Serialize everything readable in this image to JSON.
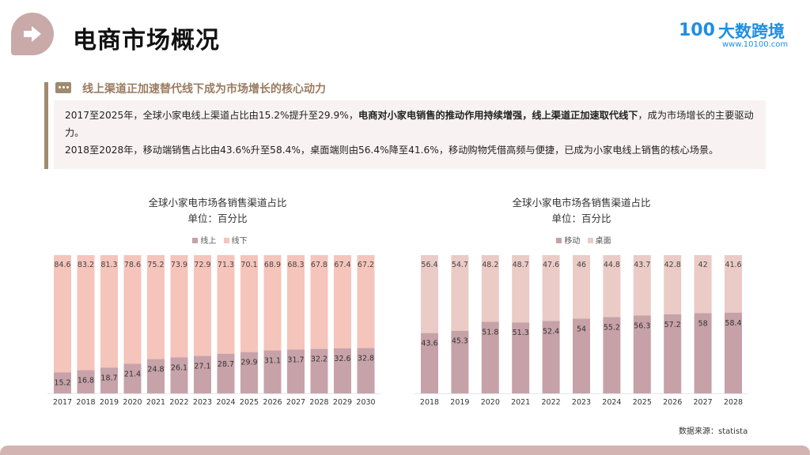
{
  "header": {
    "title": "电商市场概况",
    "icon": "arrow-right-icon"
  },
  "logo": {
    "mark": "100",
    "name": "大数跨境",
    "url": "www.10100.com"
  },
  "section": {
    "title": "线上渠道正加速替代线下成为市场增长的核心动力",
    "icon": "speech-bubble-icon"
  },
  "summary": {
    "p1_a": "2017至2025年，全球小家电线上渠道占比由15.2%提升至29.9%，",
    "p1_bold": "电商对小家电销售的推动作用持续增强，线上渠道正加速取代线下",
    "p1_b": "，成为市场增长的主要驱动力。",
    "p2": "2018至2028年，移动端销售占比由43.6%升至58.4%，桌面端则由56.4%降至41.6%，移动购物凭借高频与便捷，已成为小家电线上销售的核心场景。"
  },
  "source": "数据来源：statista",
  "chart_data": [
    {
      "type": "bar",
      "stacked": true,
      "title": "全球小家电市场各销售渠道占比",
      "subtitle": "单位：百分比",
      "legend_position": "top",
      "grid": false,
      "ylim": [
        0,
        100
      ],
      "categories": [
        "2017",
        "2018",
        "2019",
        "2020",
        "2021",
        "2022",
        "2023",
        "2024",
        "2025",
        "2026",
        "2027",
        "2028",
        "2029",
        "2030"
      ],
      "series": [
        {
          "name": "线上",
          "color": "#c7a2a9",
          "values": [
            15.2,
            16.8,
            18.7,
            21.4,
            24.8,
            26.1,
            27.1,
            28.7,
            29.9,
            31.1,
            31.7,
            32.2,
            32.6,
            32.8
          ]
        },
        {
          "name": "线下",
          "color": "#f5c4ba",
          "values": [
            84.6,
            83.2,
            81.3,
            78.6,
            75.2,
            73.9,
            72.9,
            71.3,
            70.1,
            68.9,
            68.3,
            67.8,
            67.4,
            67.2
          ]
        }
      ]
    },
    {
      "type": "bar",
      "stacked": true,
      "title": "全球小家电市场各销售渠道占比",
      "subtitle": "单位：百分比",
      "legend_position": "top",
      "grid": false,
      "ylim": [
        0,
        100
      ],
      "categories": [
        "2018",
        "2019",
        "2020",
        "2021",
        "2022",
        "2023",
        "2024",
        "2025",
        "2026",
        "2027",
        "2028"
      ],
      "series": [
        {
          "name": "移动",
          "color": "#c7a1a8",
          "values": [
            43.6,
            45.3,
            51.8,
            51.3,
            52.4,
            54,
            55.2,
            56.3,
            57.2,
            58,
            58.4
          ]
        },
        {
          "name": "桌面",
          "color": "#ebcbc6",
          "values": [
            56.4,
            54.7,
            48.2,
            48.7,
            47.6,
            46,
            44.8,
            43.7,
            42.8,
            42,
            41.6
          ]
        }
      ]
    }
  ]
}
